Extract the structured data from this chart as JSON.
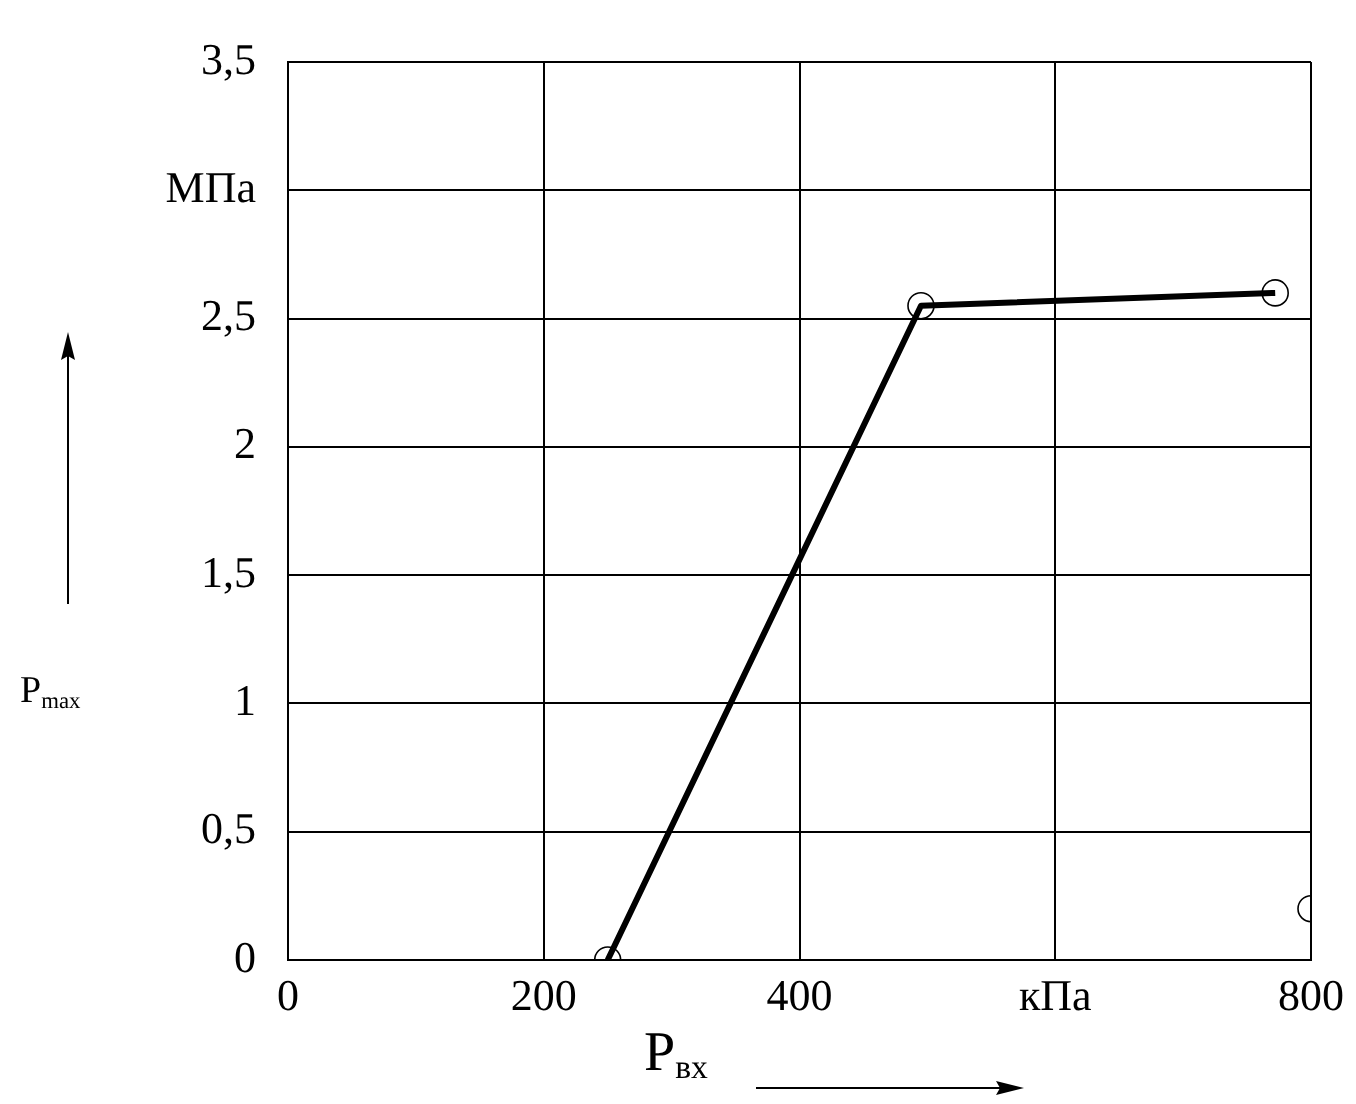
{
  "chart_data": {
    "type": "line",
    "xlabel": "P$_{вх}$",
    "ylabel": "P$_{max}$",
    "xlim": [
      0,
      800
    ],
    "ylim": [
      0,
      3.5
    ],
    "xticks": [
      0,
      200,
      400,
      {
        "value": 600,
        "label": "кПа"
      },
      800
    ],
    "yticks": [
      0,
      {
        "value": 0.5,
        "label": "0,5"
      },
      1,
      {
        "value": 1.5,
        "label": "1,5"
      },
      2,
      {
        "value": 2.5,
        "label": "2,5"
      },
      {
        "value": 3,
        "label": "МПа"
      },
      {
        "value": 3.5,
        "label": "3,5"
      }
    ],
    "grid": true,
    "marker": "circle",
    "series": [
      {
        "color": "#000000",
        "x": [
          250,
          495,
          772
        ],
        "values": [
          0,
          2.55,
          2.6
        ]
      },
      {
        "type": "scatter",
        "color": "#000000",
        "x": [
          800
        ],
        "values": [
          0.2
        ]
      }
    ]
  }
}
